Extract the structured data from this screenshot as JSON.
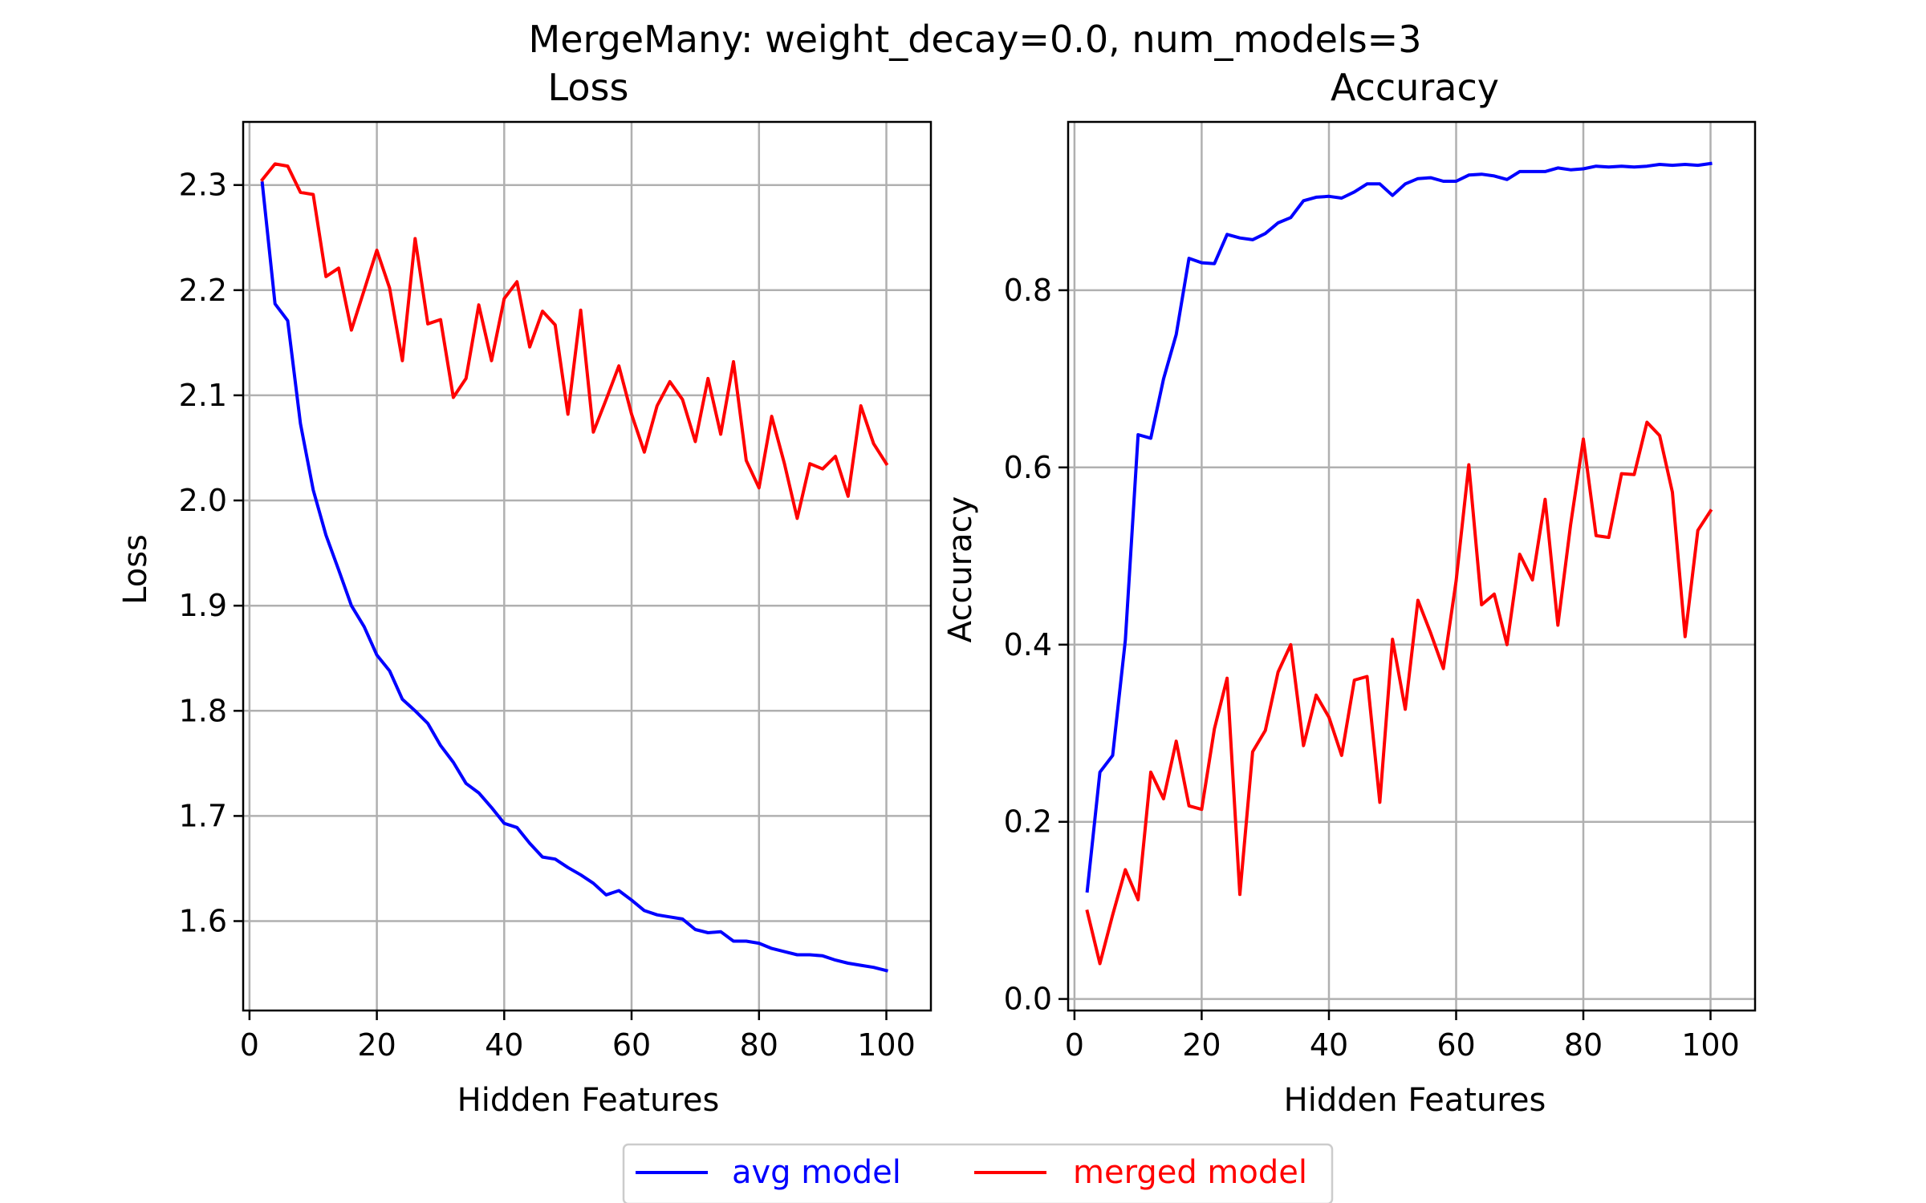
{
  "figure": {
    "suptitle": "MergeMany: weight_decay=0.0, num_models=3"
  },
  "colors": {
    "avg": "#0000ff",
    "merged": "#ff0000",
    "grid": "#b0b0b0"
  },
  "legend": {
    "placement": "bottom-center",
    "entries": [
      {
        "label": "avg model",
        "color": "#0000ff"
      },
      {
        "label": "merged model",
        "color": "#ff0000"
      }
    ]
  },
  "chart_data": [
    {
      "type": "line",
      "title": "Loss",
      "xlabel": "Hidden Features",
      "ylabel": "Loss",
      "xlim": [
        -1,
        107
      ],
      "ylim": [
        1.515,
        2.36
      ],
      "xticks": [
        0,
        20,
        40,
        60,
        80,
        100
      ],
      "xtick_labels": [
        "0",
        "20",
        "40",
        "60",
        "80",
        "100"
      ],
      "yticks": [
        1.6,
        1.7,
        1.8,
        1.9,
        2.0,
        2.1,
        2.2,
        2.3
      ],
      "ytick_labels": [
        "1.6",
        "1.7",
        "1.8",
        "1.9",
        "2.0",
        "2.1",
        "2.2",
        "2.3"
      ],
      "grid": true,
      "x": [
        2,
        4,
        6,
        8,
        10,
        12,
        14,
        16,
        18,
        20,
        22,
        24,
        26,
        28,
        30,
        32,
        34,
        36,
        38,
        40,
        42,
        44,
        46,
        48,
        50,
        52,
        54,
        56,
        58,
        60,
        62,
        64,
        66,
        68,
        70,
        72,
        74,
        76,
        78,
        80,
        82,
        84,
        86,
        88,
        90,
        92,
        94,
        96,
        98,
        100
      ],
      "series": [
        {
          "name": "avg model",
          "color": "#0000ff",
          "values": [
            2.302,
            2.187,
            2.171,
            2.073,
            2.01,
            1.967,
            1.934,
            1.9,
            1.88,
            1.853,
            1.838,
            1.811,
            1.8,
            1.788,
            1.767,
            1.751,
            1.731,
            1.722,
            1.708,
            1.693,
            1.689,
            1.674,
            1.661,
            1.659,
            1.651,
            1.644,
            1.636,
            1.625,
            1.629,
            1.62,
            1.61,
            1.606,
            1.604,
            1.602,
            1.592,
            1.589,
            1.59,
            1.581,
            1.581,
            1.579,
            1.574,
            1.571,
            1.568,
            1.568,
            1.567,
            1.563,
            1.56,
            1.558,
            1.556,
            1.553
          ]
        },
        {
          "name": "merged model",
          "color": "#ff0000",
          "values": [
            2.305,
            2.32,
            2.318,
            2.293,
            2.291,
            2.213,
            2.221,
            2.162,
            2.2,
            2.238,
            2.202,
            2.133,
            2.249,
            2.168,
            2.172,
            2.098,
            2.116,
            2.186,
            2.133,
            2.192,
            2.208,
            2.146,
            2.18,
            2.167,
            2.082,
            2.181,
            2.065,
            2.096,
            2.128,
            2.082,
            2.046,
            2.09,
            2.113,
            2.096,
            2.056,
            2.116,
            2.063,
            2.132,
            2.038,
            2.012,
            2.08,
            2.035,
            1.983,
            2.035,
            2.03,
            2.042,
            2.004,
            2.09,
            2.054,
            2.035
          ]
        }
      ]
    },
    {
      "type": "line",
      "title": "Accuracy",
      "xlabel": "Hidden Features",
      "ylabel": "Accuracy",
      "xlim": [
        -1,
        107
      ],
      "ylim": [
        -0.013,
        0.99
      ],
      "xticks": [
        0,
        20,
        40,
        60,
        80,
        100
      ],
      "xtick_labels": [
        "0",
        "20",
        "40",
        "60",
        "80",
        "100"
      ],
      "yticks": [
        0.0,
        0.2,
        0.4,
        0.6,
        0.8
      ],
      "ytick_labels": [
        "0.0",
        "0.2",
        "0.4",
        "0.6",
        "0.8"
      ],
      "grid": true,
      "x": [
        2,
        4,
        6,
        8,
        10,
        12,
        14,
        16,
        18,
        20,
        22,
        24,
        26,
        28,
        30,
        32,
        34,
        36,
        38,
        40,
        42,
        44,
        46,
        48,
        50,
        52,
        54,
        56,
        58,
        60,
        62,
        64,
        66,
        68,
        70,
        72,
        74,
        76,
        78,
        80,
        82,
        84,
        86,
        88,
        90,
        92,
        94,
        96,
        98,
        100
      ],
      "series": [
        {
          "name": "avg model",
          "color": "#0000ff",
          "values": [
            0.122,
            0.256,
            0.275,
            0.405,
            0.637,
            0.633,
            0.7,
            0.75,
            0.836,
            0.831,
            0.83,
            0.863,
            0.859,
            0.857,
            0.864,
            0.876,
            0.882,
            0.901,
            0.905,
            0.906,
            0.904,
            0.911,
            0.92,
            0.92,
            0.907,
            0.92,
            0.926,
            0.927,
            0.923,
            0.923,
            0.93,
            0.931,
            0.929,
            0.925,
            0.934,
            0.934,
            0.934,
            0.938,
            0.936,
            0.937,
            0.94,
            0.939,
            0.94,
            0.939,
            0.94,
            0.942,
            0.941,
            0.942,
            0.941,
            0.943
          ]
        },
        {
          "name": "merged model",
          "color": "#ff0000",
          "values": [
            0.099,
            0.04,
            0.095,
            0.146,
            0.112,
            0.256,
            0.226,
            0.291,
            0.218,
            0.214,
            0.305,
            0.362,
            0.118,
            0.279,
            0.303,
            0.369,
            0.4,
            0.286,
            0.343,
            0.318,
            0.275,
            0.36,
            0.364,
            0.222,
            0.406,
            0.327,
            0.45,
            0.413,
            0.373,
            0.472,
            0.603,
            0.445,
            0.457,
            0.4,
            0.502,
            0.473,
            0.564,
            0.422,
            0.535,
            0.632,
            0.523,
            0.521,
            0.593,
            0.592,
            0.651,
            0.636,
            0.572,
            0.409,
            0.529,
            0.551
          ]
        }
      ]
    }
  ]
}
